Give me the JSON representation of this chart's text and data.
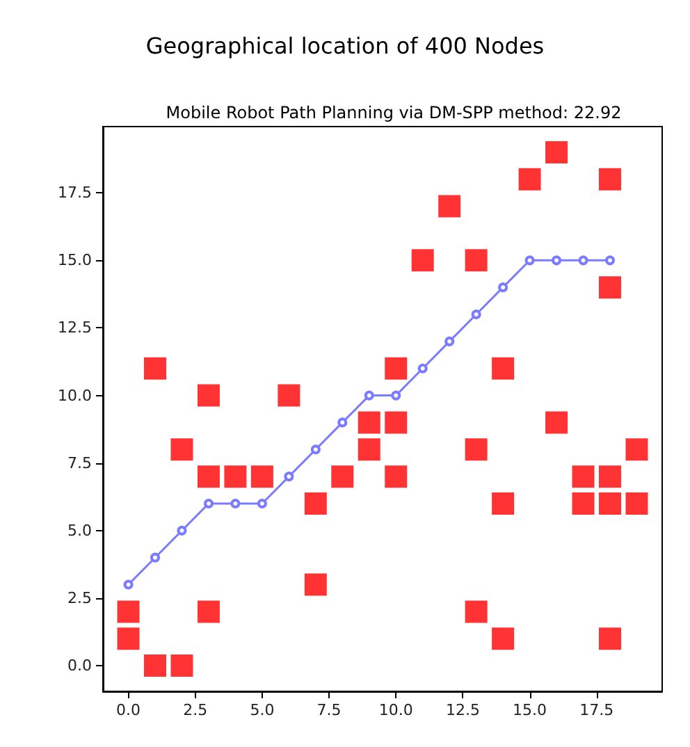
{
  "chart_data": {
    "type": "scatter",
    "title": "Geographical location of 400 Nodes",
    "subtitle": "Mobile Robot Path Planning via DM-SPP method: 22.92",
    "series": [
      {
        "color": "#ff0000",
        "marker": "square",
        "x": [
          0,
          0,
          1,
          1,
          2,
          2,
          3,
          3,
          3,
          4,
          5,
          6,
          7,
          7,
          8,
          9,
          9,
          10,
          10,
          10,
          11,
          12,
          13,
          13,
          13,
          14,
          14,
          14,
          15,
          16,
          16,
          17,
          17,
          18,
          18,
          18,
          18,
          18,
          19,
          19
        ],
        "values": [
          2,
          1,
          11,
          0,
          8,
          0,
          10,
          7,
          2,
          7,
          7,
          10,
          6,
          3,
          7,
          9,
          8,
          11,
          9,
          7,
          15,
          17,
          15,
          8,
          2,
          11,
          6,
          1,
          18,
          19,
          9,
          7,
          6,
          18,
          14,
          7,
          6,
          1,
          8,
          6
        ]
      },
      {
        "type": "line",
        "color": "#7b7bff",
        "marker": "circle",
        "line_style": "solid",
        "x": [
          0,
          1,
          2,
          3,
          4,
          5,
          6,
          7,
          8,
          9,
          10,
          11,
          12,
          13,
          14,
          15,
          16,
          17,
          18
        ],
        "values": [
          3,
          4,
          5,
          6,
          6,
          6,
          7,
          8,
          9,
          10,
          10,
          11,
          12,
          13,
          14,
          15,
          15,
          15,
          15
        ]
      }
    ],
    "xlim": [
      -0.95,
      19.95
    ],
    "ylim": [
      -0.95,
      19.95
    ],
    "xticks": [
      {
        "value": 0,
        "label": "0.0"
      },
      2.5,
      {
        "value": 5,
        "label": "5.0"
      },
      7.5,
      {
        "value": 10,
        "label": "10.0"
      },
      12.5,
      {
        "value": 15,
        "label": "15.0"
      },
      17.5
    ],
    "yticks": [
      {
        "value": 0,
        "label": "0.0"
      },
      2.5,
      {
        "value": 5,
        "label": "5.0"
      },
      7.5,
      {
        "value": 10,
        "label": "10.0"
      },
      12.5,
      {
        "value": 15,
        "label": "15.0"
      },
      17.5
    ],
    "grid": false
  }
}
